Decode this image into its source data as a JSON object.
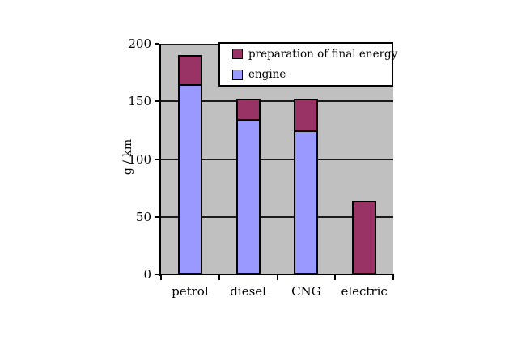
{
  "chart_data": {
    "type": "bar",
    "stacked": true,
    "categories": [
      "petrol",
      "diesel",
      "CNG",
      "electric"
    ],
    "series": [
      {
        "name": "engine",
        "color": "#9999FF",
        "values": [
          165,
          135,
          125,
          0
        ]
      },
      {
        "name": "preparation of final energy",
        "color": "#993366",
        "values": [
          25,
          17,
          27,
          64
        ]
      }
    ],
    "totals": [
      190,
      152,
      152,
      64
    ],
    "xlabel": "",
    "ylabel": "g / km",
    "ylim": [
      0,
      200
    ],
    "yticks": [
      0,
      50,
      100,
      150,
      200
    ],
    "grid": true,
    "plot_background": "#C0C0C0",
    "legend_position": "top-right",
    "legend_entries": [
      {
        "label": "preparation of final energy",
        "color": "#993366"
      },
      {
        "label": "engine",
        "color": "#9999FF"
      }
    ]
  }
}
